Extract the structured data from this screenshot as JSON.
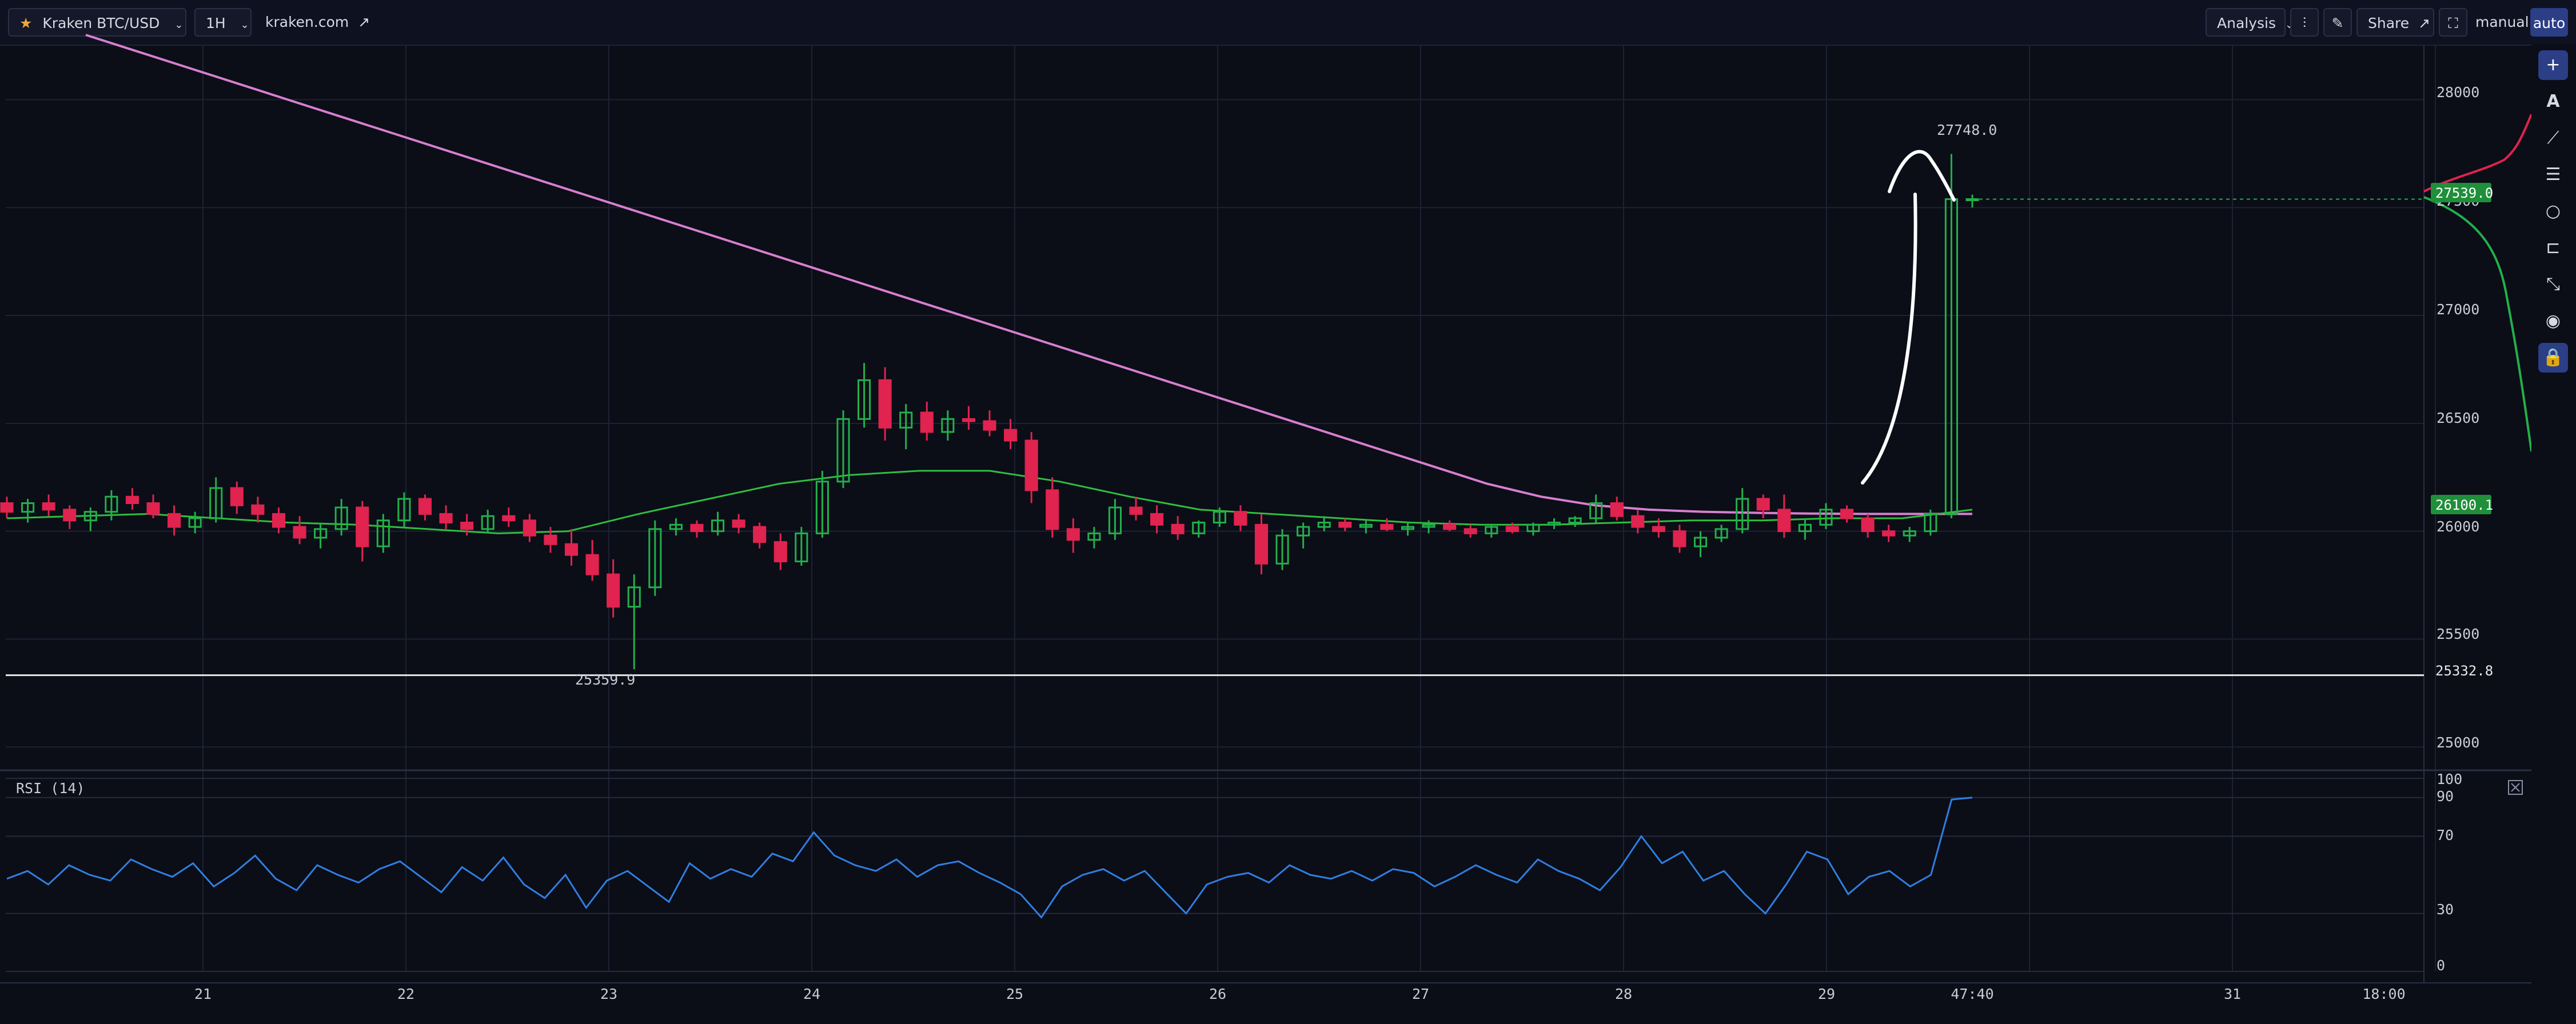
{
  "header": {
    "symbol": "Kraken BTC/USD",
    "interval": "1H",
    "source_link": "kraken.com",
    "analysis_label": "Analysis",
    "share_label": "Share",
    "manual_label": "manual",
    "auto_label": "auto"
  },
  "icons": [
    "star-icon",
    "chevron-down-icon",
    "external-link-icon",
    "indicator-settings-icon",
    "pencil-icon",
    "expand-icon",
    "plus-icon",
    "text-icon",
    "trend-line-icon",
    "horizontal-lines-icon",
    "circle-icon",
    "measure-icon",
    "path-icon",
    "eye-icon",
    "lock-icon"
  ],
  "colors": {
    "background": "#0b0d17",
    "up": "#22b04a",
    "down": "#e0234f",
    "ema_long": "#d77fd0",
    "ema_short": "#2fbe3f",
    "rsi": "#2f7fe0",
    "price_tag": "#1f8f3a"
  },
  "chart_data": [
    {
      "type": "candlestick",
      "title": "",
      "x_ticks": [
        "21",
        "22",
        "23",
        "24",
        "25",
        "26",
        "27",
        "28",
        "29",
        "47:40",
        "31",
        "18:00"
      ],
      "y_ticks": [
        25000,
        25500,
        26000,
        26500,
        27000,
        27500,
        28000
      ],
      "ylim": [
        24900,
        28250
      ],
      "grid": true,
      "annotations": {
        "high_label": "27748.0",
        "low_label": "25359.9"
      },
      "price_tags": {
        "last": "27539.0",
        "ma": "26100.1",
        "support": "25332.8"
      },
      "support_level": 25332.8,
      "series": [
        {
          "kind": "ohlc",
          "values": [
            [
              26130,
              26160,
              26060,
              26090
            ],
            [
              26090,
              26150,
              26040,
              26130
            ],
            [
              26130,
              26170,
              26070,
              26100
            ],
            [
              26100,
              26120,
              26010,
              26050
            ],
            [
              26050,
              26110,
              26000,
              26090
            ],
            [
              26090,
              26190,
              26050,
              26160
            ],
            [
              26160,
              26200,
              26100,
              26130
            ],
            [
              26130,
              26170,
              26060,
              26080
            ],
            [
              26080,
              26120,
              25980,
              26020
            ],
            [
              26020,
              26090,
              25990,
              26060
            ],
            [
              26060,
              26250,
              26040,
              26200
            ],
            [
              26200,
              26230,
              26080,
              26120
            ],
            [
              26120,
              26160,
              26040,
              26080
            ],
            [
              26080,
              26110,
              25990,
              26020
            ],
            [
              26020,
              26070,
              25940,
              25970
            ],
            [
              25970,
              26040,
              25920,
              26010
            ],
            [
              26010,
              26150,
              25980,
              26110
            ],
            [
              26110,
              26140,
              25860,
              25930
            ],
            [
              25930,
              26080,
              25900,
              26050
            ],
            [
              26050,
              26180,
              26020,
              26150
            ],
            [
              26150,
              26170,
              26050,
              26080
            ],
            [
              26080,
              26120,
              26010,
              26040
            ],
            [
              26040,
              26080,
              25980,
              26010
            ],
            [
              26010,
              26100,
              25990,
              26070
            ],
            [
              26070,
              26110,
              26020,
              26050
            ],
            [
              26050,
              26080,
              25950,
              25980
            ],
            [
              25980,
              26020,
              25900,
              25940
            ],
            [
              25940,
              26010,
              25840,
              25890
            ],
            [
              25890,
              25960,
              25770,
              25800
            ],
            [
              25800,
              25870,
              25600,
              25650
            ],
            [
              25650,
              25800,
              25360,
              25740
            ],
            [
              25740,
              26050,
              25700,
              26010
            ],
            [
              26010,
              26060,
              25980,
              26030
            ],
            [
              26030,
              26050,
              25970,
              26000
            ],
            [
              26000,
              26090,
              25980,
              26050
            ],
            [
              26050,
              26080,
              25990,
              26020
            ],
            [
              26020,
              26040,
              25920,
              25950
            ],
            [
              25950,
              25990,
              25820,
              25860
            ],
            [
              25860,
              26020,
              25840,
              25990
            ],
            [
              25990,
              26280,
              25970,
              26230
            ],
            [
              26230,
              26560,
              26200,
              26520
            ],
            [
              26520,
              26780,
              26480,
              26700
            ],
            [
              26700,
              26760,
              26420,
              26480
            ],
            [
              26480,
              26590,
              26380,
              26550
            ],
            [
              26550,
              26600,
              26420,
              26460
            ],
            [
              26460,
              26560,
              26420,
              26520
            ],
            [
              26520,
              26580,
              26470,
              26510
            ],
            [
              26510,
              26560,
              26440,
              26470
            ],
            [
              26470,
              26520,
              26380,
              26420
            ],
            [
              26420,
              26460,
              26130,
              26190
            ],
            [
              26190,
              26250,
              25970,
              26010
            ],
            [
              26010,
              26060,
              25900,
              25960
            ],
            [
              25960,
              26020,
              25920,
              25990
            ],
            [
              25990,
              26150,
              25960,
              26110
            ],
            [
              26110,
              26160,
              26050,
              26080
            ],
            [
              26080,
              26120,
              25990,
              26030
            ],
            [
              26030,
              26070,
              25960,
              25990
            ],
            [
              25990,
              26050,
              25970,
              26040
            ],
            [
              26040,
              26110,
              26020,
              26090
            ],
            [
              26090,
              26120,
              26000,
              26030
            ],
            [
              26030,
              26080,
              25800,
              25850
            ],
            [
              25850,
              26010,
              25820,
              25980
            ],
            [
              25980,
              26040,
              25920,
              26020
            ],
            [
              26020,
              26070,
              26000,
              26040
            ],
            [
              26040,
              26060,
              26000,
              26020
            ],
            [
              26020,
              26050,
              25990,
              26030
            ],
            [
              26030,
              26060,
              26000,
              26010
            ],
            [
              26010,
              26040,
              25980,
              26020
            ],
            [
              26020,
              26050,
              25990,
              26030
            ],
            [
              26030,
              26050,
              26000,
              26010
            ],
            [
              26010,
              26030,
              25970,
              25990
            ],
            [
              25990,
              26030,
              25970,
              26020
            ],
            [
              26020,
              26040,
              25990,
              26000
            ],
            [
              26000,
              26040,
              25980,
              26030
            ],
            [
              26030,
              26060,
              26010,
              26040
            ],
            [
              26040,
              26070,
              26020,
              26060
            ],
            [
              26060,
              26170,
              26040,
              26130
            ],
            [
              26130,
              26160,
              26050,
              26070
            ],
            [
              26070,
              26100,
              25990,
              26020
            ],
            [
              26020,
              26060,
              25970,
              26000
            ],
            [
              26000,
              26030,
              25900,
              25930
            ],
            [
              25930,
              26000,
              25880,
              25970
            ],
            [
              25970,
              26030,
              25950,
              26010
            ],
            [
              26010,
              26200,
              25990,
              26150
            ],
            [
              26150,
              26170,
              26060,
              26100
            ],
            [
              26100,
              26170,
              25970,
              26000
            ],
            [
              26000,
              26060,
              25960,
              26030
            ],
            [
              26030,
              26130,
              26010,
              26100
            ],
            [
              26100,
              26120,
              26040,
              26060
            ],
            [
              26060,
              26080,
              25970,
              26000
            ],
            [
              26000,
              26030,
              25950,
              25980
            ],
            [
              25980,
              26020,
              25950,
              26000
            ],
            [
              26000,
              26100,
              25980,
              26080
            ],
            [
              26080,
              27748,
              26060,
              27539
            ],
            [
              27539,
              27560,
              27500,
              27539
            ]
          ]
        },
        {
          "kind": "ema_long",
          "values": [
            28300,
            28220,
            28140,
            28060,
            27980,
            27900,
            27820,
            27740,
            27660,
            27580,
            27500,
            27420,
            27340,
            27260,
            27180,
            27100,
            27020,
            26940,
            26860,
            26780,
            26700,
            26620,
            26540,
            26460,
            26380,
            26300,
            26220,
            26160,
            26120,
            26100,
            26090,
            26085,
            26082,
            26080,
            26080,
            26080
          ]
        },
        {
          "kind": "ema_short",
          "values": [
            26060,
            26070,
            26080,
            26060,
            26040,
            26030,
            26010,
            25990,
            26000,
            26080,
            26150,
            26220,
            26260,
            26280,
            26280,
            26230,
            26160,
            26100,
            26080,
            26060,
            26040,
            26030,
            26030,
            26040,
            26050,
            26050,
            26060,
            26060,
            26100
          ]
        }
      ]
    },
    {
      "type": "line",
      "title": "RSI (14)",
      "y_ticks": [
        0,
        30,
        70,
        90,
        100
      ],
      "ylim": [
        0,
        100
      ],
      "series": [
        {
          "name": "RSI (14)",
          "values": [
            48,
            52,
            45,
            55,
            50,
            47,
            58,
            53,
            49,
            56,
            44,
            51,
            60,
            48,
            42,
            55,
            50,
            46,
            53,
            57,
            49,
            41,
            54,
            47,
            59,
            45,
            38,
            50,
            33,
            47,
            52,
            44,
            36,
            56,
            48,
            53,
            49,
            61,
            57,
            72,
            60,
            55,
            52,
            58,
            49,
            55,
            57,
            51,
            46,
            40,
            28,
            44,
            50,
            53,
            47,
            52,
            41,
            30,
            45,
            49,
            51,
            46,
            55,
            50,
            48,
            52,
            47,
            53,
            51,
            44,
            49,
            55,
            50,
            46,
            58,
            52,
            48,
            42,
            54,
            70,
            56,
            62,
            47,
            52,
            40,
            30,
            45,
            62,
            58,
            40,
            49,
            52,
            44,
            50,
            89,
            90
          ]
        }
      ]
    }
  ]
}
